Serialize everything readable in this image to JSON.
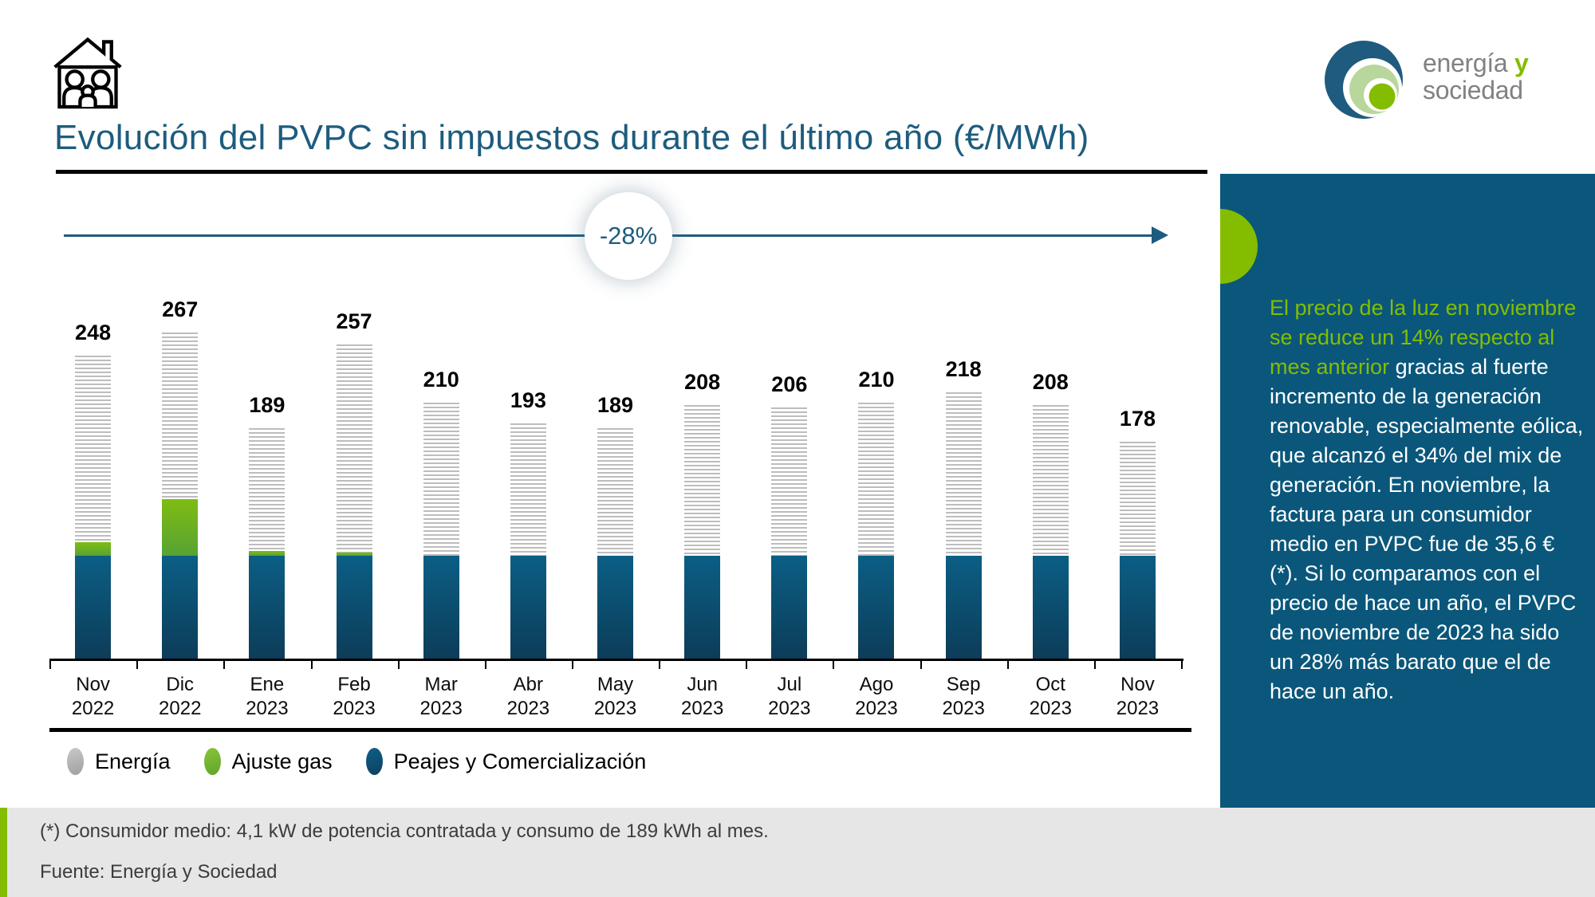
{
  "header": {
    "title": "Evolución del PVPC sin impuestos durante el último año (€/MWh)",
    "logo": {
      "word1": "energía",
      "word2": "y",
      "word3": "sociedad"
    }
  },
  "annotation": {
    "label": "-28%"
  },
  "chart_data": {
    "type": "bar",
    "stacked": true,
    "title": "Evolución del PVPC sin impuestos durante el último año (€/MWh)",
    "unit": "€/MWh",
    "gridlines": false,
    "legend_position": "bottom",
    "ylim": [
      0,
      280
    ],
    "categories": [
      "Nov 2022",
      "Dic 2022",
      "Ene 2023",
      "Feb 2023",
      "Mar 2023",
      "Abr 2023",
      "May 2023",
      "Jun 2023",
      "Jul 2023",
      "Ago 2023",
      "Sep 2023",
      "Oct 2023",
      "Nov 2023"
    ],
    "totals": [
      248,
      267,
      189,
      257,
      210,
      193,
      189,
      208,
      206,
      210,
      218,
      208,
      178
    ],
    "series": [
      {
        "name": "Energía",
        "style": "gray-striped",
        "values": [
          152,
          136,
          100,
          169,
          125,
          108,
          104,
          123,
          121,
          125,
          133,
          123,
          93
        ]
      },
      {
        "name": "Ajuste gas",
        "style": "green",
        "values": [
          11,
          46,
          4,
          3,
          0,
          0,
          0,
          0,
          0,
          0,
          0,
          0,
          0
        ]
      },
      {
        "name": "Peajes y Comercialización",
        "style": "dark-blue",
        "values": [
          85,
          85,
          85,
          85,
          85,
          85,
          85,
          85,
          85,
          85,
          85,
          85,
          85
        ]
      }
    ],
    "annotation": "-28%"
  },
  "sidebar": {
    "highlight": "El precio de la luz en noviembre se reduce un 14% respecto al mes anterior",
    "body": " gracias al fuerte incremento de la generación renovable, especialmente eólica, que alcanzó el 34% del mix de generación. En noviembre, la factura para un consumidor medio en PVPC fue de 35,6 € (*). Si lo comparamos con el precio de hace un año, el PVPC de noviembre de 2023 ha sido un 28% más barato que el de hace un año."
  },
  "footer": {
    "note": "(*) Consumidor medio: 4,1 kW de potencia contratada y consumo de 189 kWh al mes.",
    "source": "Fuente: Energía y Sociedad"
  },
  "colors": {
    "title_blue": "#1d5c7e",
    "sidebar_blue": "#0a577b",
    "accent_green": "#84bd00",
    "stripe_gray": "#bdbdbd",
    "bar_blue_top": "#0b5e85",
    "bar_blue_bottom": "#0d3c58",
    "bar_green_top": "#7fbc12",
    "bar_green_bottom": "#57a335",
    "footer_bg": "#e7e6e6"
  }
}
